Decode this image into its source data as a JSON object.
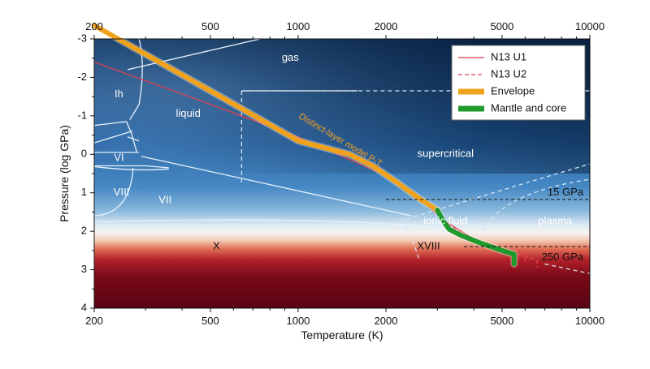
{
  "chart_data": {
    "type": "line",
    "x_scale": "log",
    "xlim": [
      200,
      10000
    ],
    "ylim": [
      -3,
      4
    ],
    "y_inverted": true,
    "xlabel": "Temperature (K)",
    "ylabel": "Pressure (log GPa)",
    "x_ticks": [
      200,
      500,
      1000,
      2000,
      5000,
      10000
    ],
    "x_tick_labels": [
      "200",
      "500",
      "1000",
      "2000",
      "5000",
      "10000"
    ],
    "y_ticks": [
      -3,
      -2,
      -1,
      0,
      1,
      2,
      3,
      4
    ],
    "y_tick_labels": [
      "-3",
      "-2",
      "-1",
      "0",
      "1",
      "2",
      "3",
      "4"
    ],
    "grid": false,
    "legend_position": "top-right",
    "series": [
      {
        "name": "N13 U1",
        "style": "solid",
        "color": "#e0404f",
        "x": [
          200,
          500,
          1000,
          2000,
          2500,
          3200,
          4000,
          5000,
          6000,
          6000
        ],
        "y": [
          -2.4,
          -1.3,
          -0.45,
          0.55,
          1.0,
          1.75,
          2.2,
          2.5,
          2.6,
          2.8
        ]
      },
      {
        "name": "N13 U2",
        "style": "dashed",
        "color": "#e0404f",
        "x": [
          2500,
          3200,
          4000,
          5000,
          6000,
          6600,
          6600
        ],
        "y": [
          1.0,
          1.78,
          2.25,
          2.55,
          2.65,
          2.75,
          2.95
        ]
      },
      {
        "name": "Envelope",
        "style": "thick",
        "color": "#f0a21c",
        "x": [
          200,
          500,
          1000,
          1500,
          1800,
          2200,
          2600,
          3000
        ],
        "y": [
          -3.35,
          -1.65,
          -0.35,
          0.0,
          0.3,
          0.75,
          1.15,
          1.45
        ]
      },
      {
        "name": "Mantle and core",
        "style": "thick",
        "color": "#1f9a2c",
        "x": [
          3000,
          3150,
          3300,
          3600,
          4200,
          5000,
          5500,
          5500
        ],
        "y": [
          1.45,
          1.75,
          1.95,
          2.1,
          2.3,
          2.5,
          2.6,
          2.85
        ]
      }
    ],
    "reference_lines": [
      {
        "label": "15 GPa",
        "y": 1.176,
        "x_from": 2000,
        "x_to": 10000
      },
      {
        "label": "250 GPa",
        "y": 2.398,
        "x_from": 3700,
        "x_to": 10000
      }
    ],
    "phase_labels": [
      {
        "text": "gas",
        "x": 940,
        "y": -2.5
      },
      {
        "text": "Ih",
        "x": 243,
        "y": -1.55
      },
      {
        "text": "liquid",
        "x": 420,
        "y": -1.05
      },
      {
        "text": "VI",
        "x": 243,
        "y": 0.1
      },
      {
        "text": "VIII",
        "x": 248,
        "y": 1.0
      },
      {
        "text": "VII",
        "x": 350,
        "y": 1.2
      },
      {
        "text": "supercritical",
        "x": 3200,
        "y": 0.0
      },
      {
        "text": "ionic fluid",
        "x": 3200,
        "y": 1.75
      },
      {
        "text": "plasma",
        "x": 7600,
        "y": 1.75
      },
      {
        "text": "X",
        "x": 525,
        "y": 2.4
      },
      {
        "text": "XVIII",
        "x": 2800,
        "y": 2.4
      }
    ],
    "annotations": [
      {
        "text": "Distinct-layer model P-T",
        "x": 1000,
        "y": -0.95,
        "angle": 31
      }
    ]
  }
}
